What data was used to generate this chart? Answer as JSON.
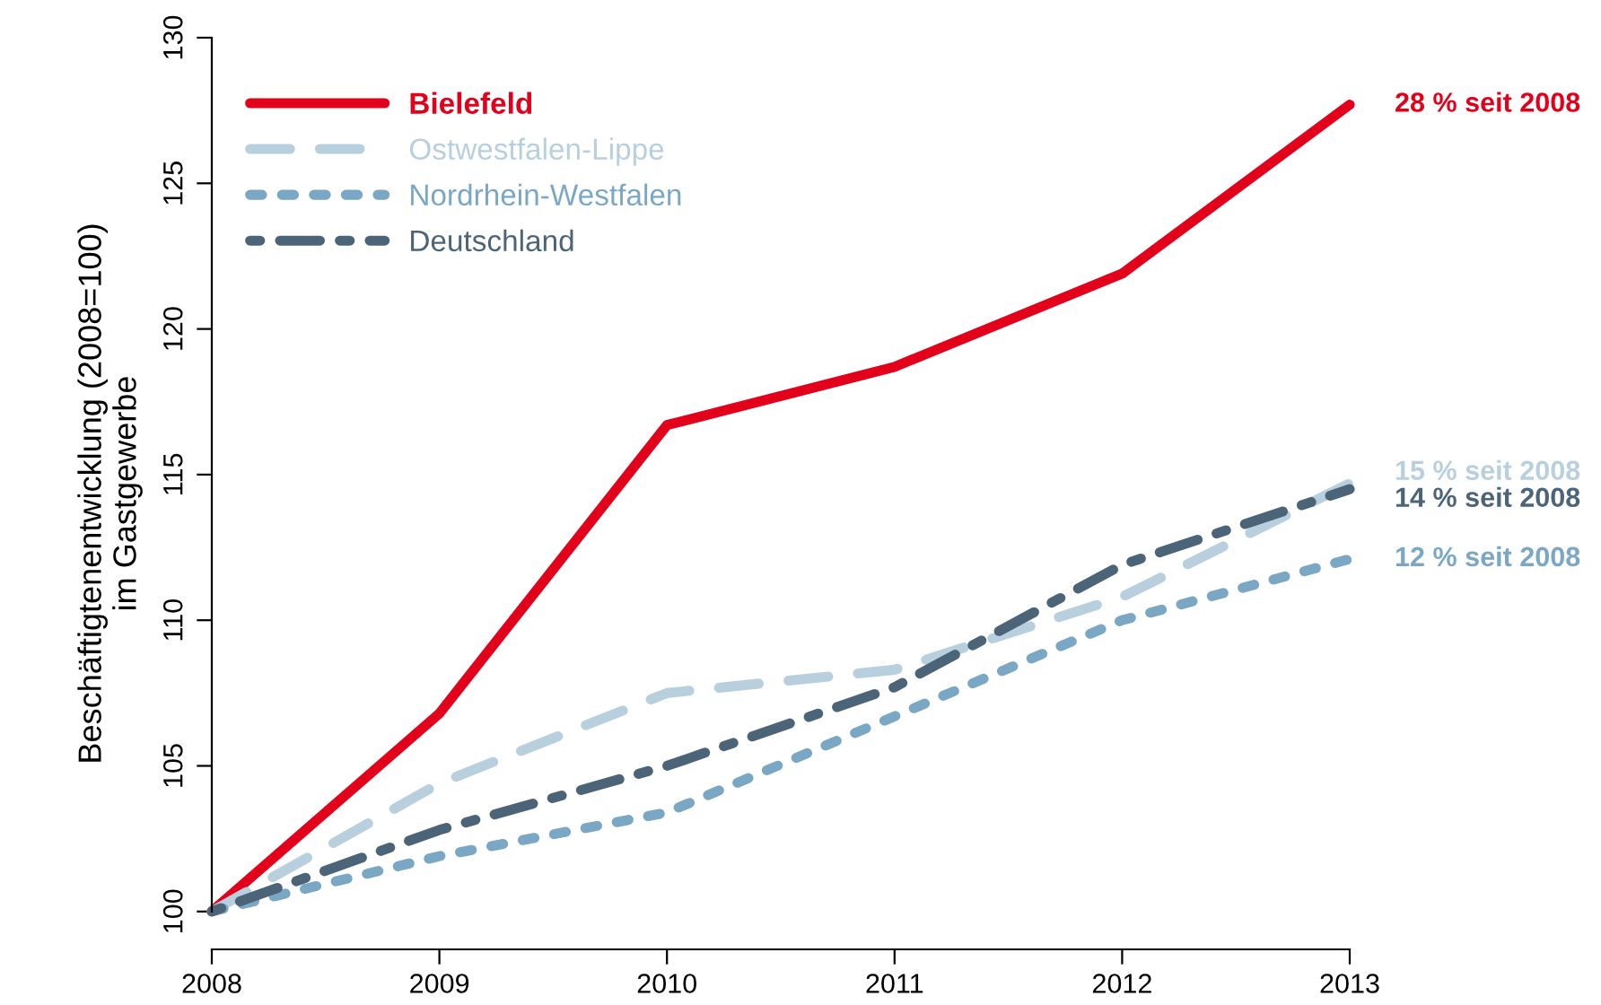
{
  "chart_data": {
    "type": "line",
    "ylabel": "Beschäftigtenentwicklung (2008=100)\nim Gastgewerbe",
    "x": [
      2008,
      2009,
      2010,
      2011,
      2012,
      2013
    ],
    "series": [
      {
        "name": "Bielefeld",
        "color": "#e2001a",
        "line_style": "solid",
        "values": [
          100,
          106.8,
          116.7,
          118.7,
          121.9,
          127.7
        ]
      },
      {
        "name": "Ostwestfalen-Lippe",
        "color": "#b8cfdd",
        "line_style": "dashed",
        "values": [
          100,
          104.4,
          107.5,
          108.3,
          110.8,
          114.7
        ]
      },
      {
        "name": "Nordrhein-Westfalen",
        "color": "#7aa7c4",
        "line_style": "dotted",
        "values": [
          100,
          101.9,
          103.4,
          106.7,
          110.0,
          112.1
        ]
      },
      {
        "name": "Deutschland",
        "color": "#4b6478",
        "line_style": "dashdot",
        "values": [
          100,
          102.8,
          105.0,
          107.7,
          111.9,
          114.5
        ]
      }
    ],
    "annotations": [
      "28 % seit 2008",
      "15 % seit 2008",
      "12 % seit 2008",
      "14 % seit 2008"
    ],
    "ylim": [
      98.7,
      130
    ],
    "yticks": [
      100,
      105,
      110,
      115,
      120,
      125,
      130
    ],
    "xlim": [
      2008,
      2013
    ],
    "xticks": [
      2008,
      2009,
      2010,
      2011,
      2012,
      2013
    ],
    "grid": false,
    "legend": "top left",
    "marker": "none"
  }
}
